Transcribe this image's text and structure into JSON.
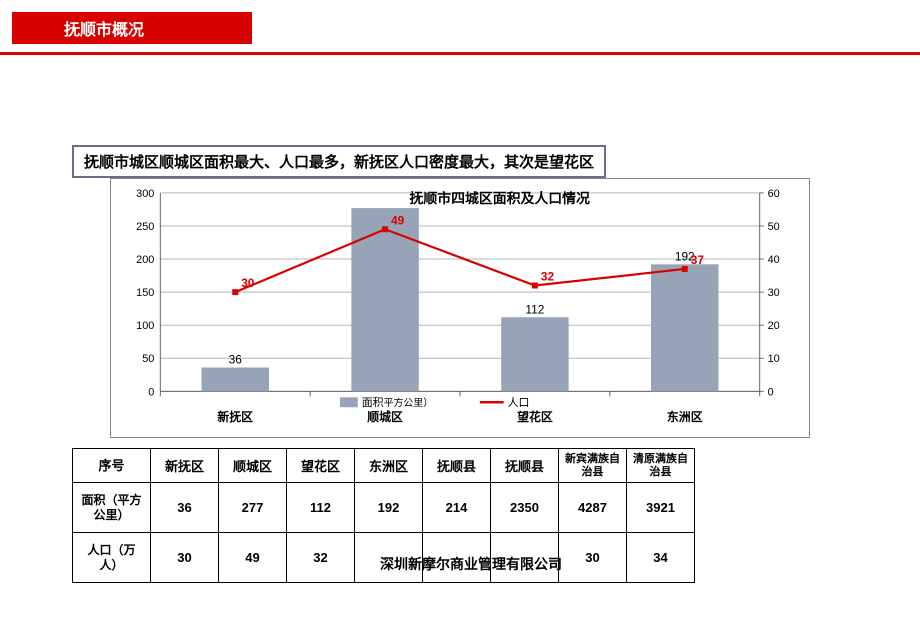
{
  "header": {
    "title": "抚顺市概况",
    "title_bg": "#d90000",
    "title_color": "#ffffff",
    "underline_color": "#d90000"
  },
  "subtitle": "抚顺市城区顺城区面积最大、人口最多，新抚区人口密度最大，其次是望花区",
  "chart": {
    "type": "bar-line-combo",
    "title": "抚顺市四城区面积及人口情况",
    "title_fontsize": 14,
    "categories": [
      "新抚区",
      "顺城区",
      "望花区",
      "东洲区"
    ],
    "bar_series": {
      "name": "面积",
      "unit_suffix": "平方公里）",
      "values": [
        36,
        277,
        112,
        192
      ],
      "color": "#97a4b8",
      "labels": [
        "36",
        "",
        "112",
        "192"
      ]
    },
    "line_series": {
      "name": "人口",
      "values": [
        30,
        49,
        32,
        37
      ],
      "color": "#d90000",
      "labels": [
        "30",
        "49",
        "32",
        "37"
      ]
    },
    "y_left": {
      "min": 0,
      "max": 300,
      "step": 50
    },
    "y_right": {
      "min": 0,
      "max": 60,
      "step": 10
    },
    "grid_color": "#b5b5b5",
    "axis_color": "#666666",
    "text_color": "#000000",
    "background_color": "#ffffff",
    "axis_fontsize": 11,
    "bar_width_ratio": 0.45
  },
  "table": {
    "columns": [
      "序号",
      "新抚区",
      "顺城区",
      "望花区",
      "东洲区",
      "抚顺县",
      "抚顺县",
      "新宾满族自治县",
      "清原满族自治县"
    ],
    "rows": [
      {
        "head": "面积（平方公里）",
        "cells": [
          "36",
          "277",
          "112",
          "192",
          "214",
          "2350",
          "4287",
          "3921"
        ]
      },
      {
        "head": "人口（万人）",
        "cells": [
          "30",
          "49",
          "32",
          "",
          "",
          "",
          "30",
          "34"
        ]
      }
    ],
    "border_color": "#000000"
  },
  "footer": "深圳新摩尔商业管理有限公司"
}
